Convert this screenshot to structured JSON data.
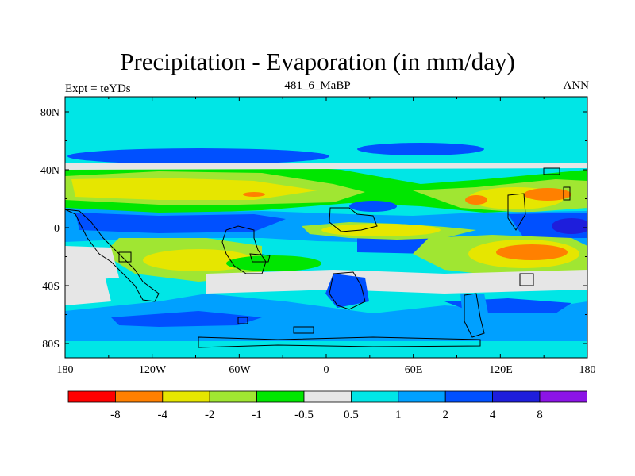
{
  "title": "Precipitation - Evaporation (in mm/day)",
  "subtitle_left": "Expt = teYDs",
  "subtitle_center": "481_6_MaBP",
  "subtitle_right": "ANN",
  "map": {
    "lon_labels": [
      "180",
      "120W",
      "60W",
      "0",
      "60E",
      "120E",
      "180"
    ],
    "lat_labels": [
      "80N",
      "40N",
      "0",
      "40S",
      "80S"
    ]
  },
  "colorbar": {
    "labels": [
      "-8",
      "-4",
      "-2",
      "-1",
      "-0.5",
      "0.5",
      "1",
      "2",
      "4",
      "8"
    ],
    "colors": [
      "#ff0000",
      "#ff8000",
      "#e6e600",
      "#a0e632",
      "#00e600",
      "#e6e6e6",
      "#00e6e6",
      "#00a0ff",
      "#0050ff",
      "#1e1edc",
      "#8c14e6"
    ]
  }
}
